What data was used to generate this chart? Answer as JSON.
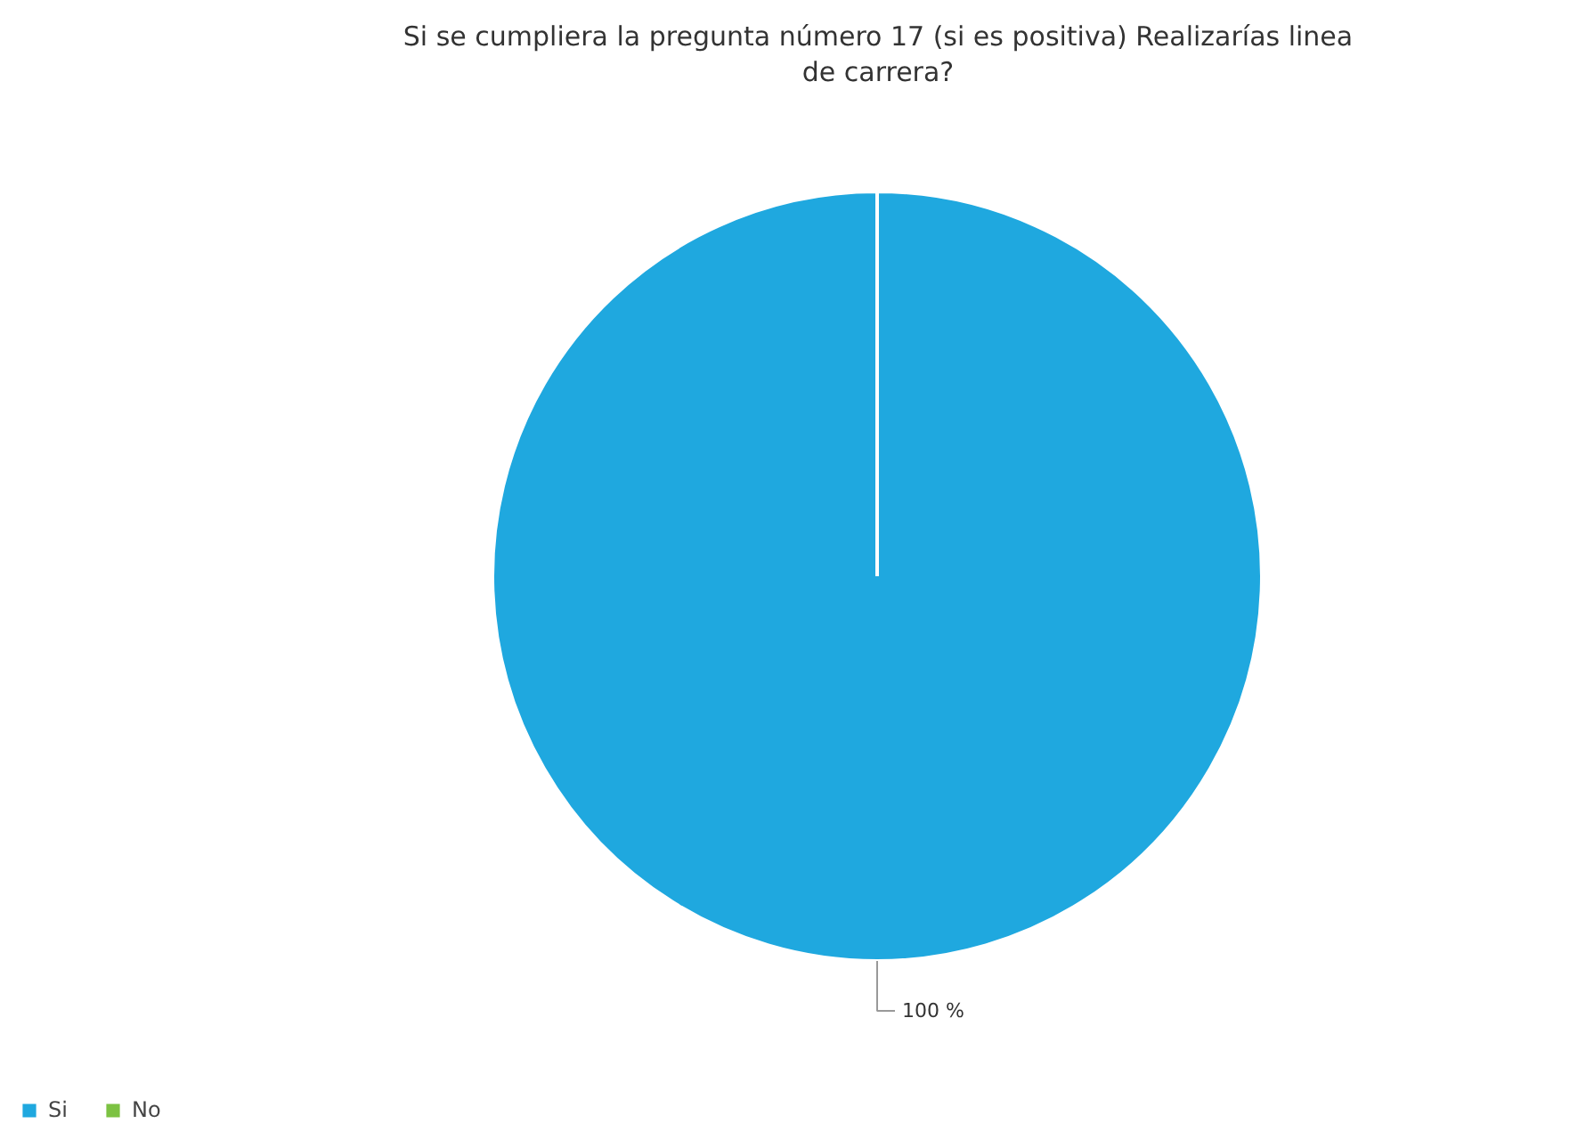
{
  "chart_data": {
    "type": "pie",
    "title": "Si se cumpliera la pregunta número 17 (si es positiva) Realizarías linea de carrera?",
    "categories": [
      "Si",
      "No"
    ],
    "values": [
      100,
      0
    ],
    "colors": [
      "#1fa8df",
      "#7cc242"
    ],
    "value_labels": [
      "100 %",
      null
    ],
    "legend": "bottom left"
  }
}
